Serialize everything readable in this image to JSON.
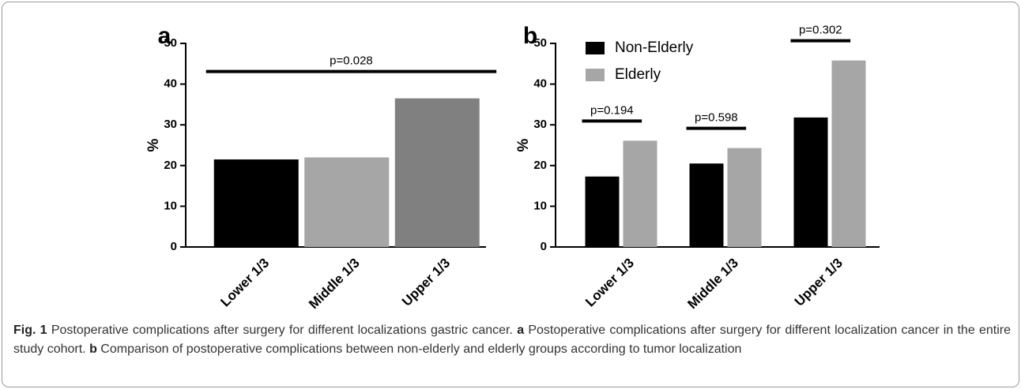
{
  "chart_data": [
    {
      "type": "bar",
      "panel_label": "a",
      "ylabel": "%",
      "categories": [
        "Lower 1/3",
        "Middle 1/3",
        "Upper 1/3"
      ],
      "values": [
        21.5,
        22,
        36.5
      ],
      "colors": [
        "#000000",
        "#a6a6a6",
        "#808080"
      ],
      "ylim": [
        0,
        50
      ],
      "yticks": [
        0,
        10,
        20,
        30,
        40,
        50
      ],
      "annotations": [
        {
          "text": "p=0.028",
          "span": [
            "Lower 1/3",
            "Upper 1/3"
          ]
        }
      ]
    },
    {
      "type": "bar",
      "panel_label": "b",
      "ylabel": "%",
      "categories": [
        "Lower 1/3",
        "Middle 1/3",
        "Upper 1/3"
      ],
      "series": [
        {
          "name": "Non-Elderly",
          "color": "#000000",
          "values": [
            17.3,
            20.5,
            31.8
          ]
        },
        {
          "name": "Elderly",
          "color": "#a6a6a6",
          "values": [
            26.1,
            24.3,
            45.8
          ]
        }
      ],
      "legend": "top-left",
      "ylim": [
        0,
        50
      ],
      "yticks": [
        0,
        10,
        20,
        30,
        40,
        50
      ],
      "annotations": [
        {
          "text": "p=0.194",
          "category": "Lower 1/3"
        },
        {
          "text": "p=0.598",
          "category": "Middle 1/3"
        },
        {
          "text": "p=0.302",
          "category": "Upper 1/3"
        }
      ]
    }
  ],
  "caption": {
    "label": "Fig. 1",
    "text": "Postoperative complications after surgery for different localizations gastric cancer.",
    "panels": [
      {
        "label": "a",
        "text": "Postoperative complications after surgery for different localization cancer in the entire study cohort."
      },
      {
        "label": "b",
        "text": "Comparison of postoperative complications between non-elderly and elderly groups according to tumor localization"
      }
    ]
  }
}
